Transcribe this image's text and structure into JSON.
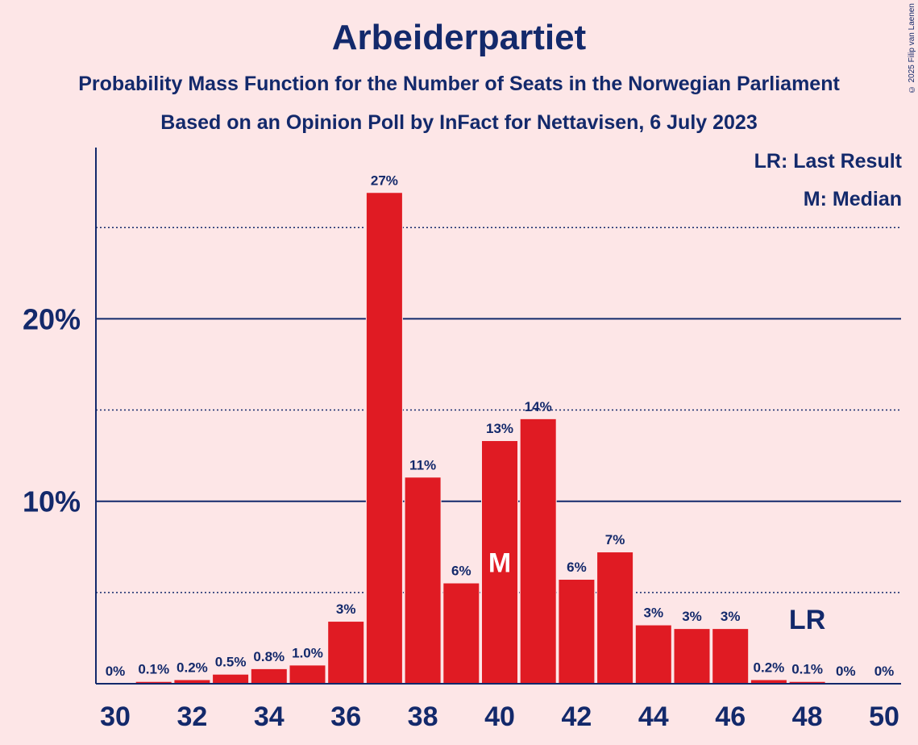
{
  "title": "Arbeiderpartiet",
  "subtitle1": "Probability Mass Function for the Number of Seats in the Norwegian Parliament",
  "subtitle2": "Based on an Opinion Poll by InFact for Nettavisen, 6 July 2023",
  "copyright": "© 2025 Filip van Laenen",
  "legend": {
    "last_result": "LR: Last Result",
    "median": "M: Median"
  },
  "colors": {
    "bar": "#e01b23",
    "text": "#13296b",
    "background": "#fde6e7"
  },
  "chart_data": {
    "type": "bar",
    "x": [
      30,
      31,
      32,
      33,
      34,
      35,
      36,
      37,
      38,
      39,
      40,
      41,
      42,
      43,
      44,
      45,
      46,
      47,
      48,
      49,
      50
    ],
    "values": [
      0,
      0.1,
      0.2,
      0.5,
      0.8,
      1.0,
      3.4,
      26.9,
      11.3,
      5.5,
      13.3,
      14.5,
      5.7,
      7.2,
      3.2,
      3.0,
      3.0,
      0.2,
      0.1,
      0,
      0
    ],
    "labels": [
      "0%",
      "0.1%",
      "0.2%",
      "0.5%",
      "0.8%",
      "1.0%",
      "3%",
      "27%",
      "11%",
      "6%",
      "13%",
      "14%",
      "6%",
      "7%",
      "3%",
      "3%",
      "3%",
      "0.2%",
      "0.1%",
      "0%",
      "0%"
    ],
    "x_tick_labels": [
      "30",
      "32",
      "34",
      "36",
      "38",
      "40",
      "42",
      "44",
      "46",
      "48",
      "50"
    ],
    "x_ticks": [
      30,
      32,
      34,
      36,
      38,
      40,
      42,
      44,
      46,
      48,
      50
    ],
    "y_tick_labels": [
      "10%",
      "20%"
    ],
    "y_ticks": [
      10,
      20
    ],
    "y_dotted_gridlines": [
      5,
      15,
      25
    ],
    "ylim": [
      0,
      29.4
    ],
    "median": {
      "x": 40,
      "label": "M"
    },
    "last_result": {
      "x": 48,
      "label": "LR"
    }
  }
}
